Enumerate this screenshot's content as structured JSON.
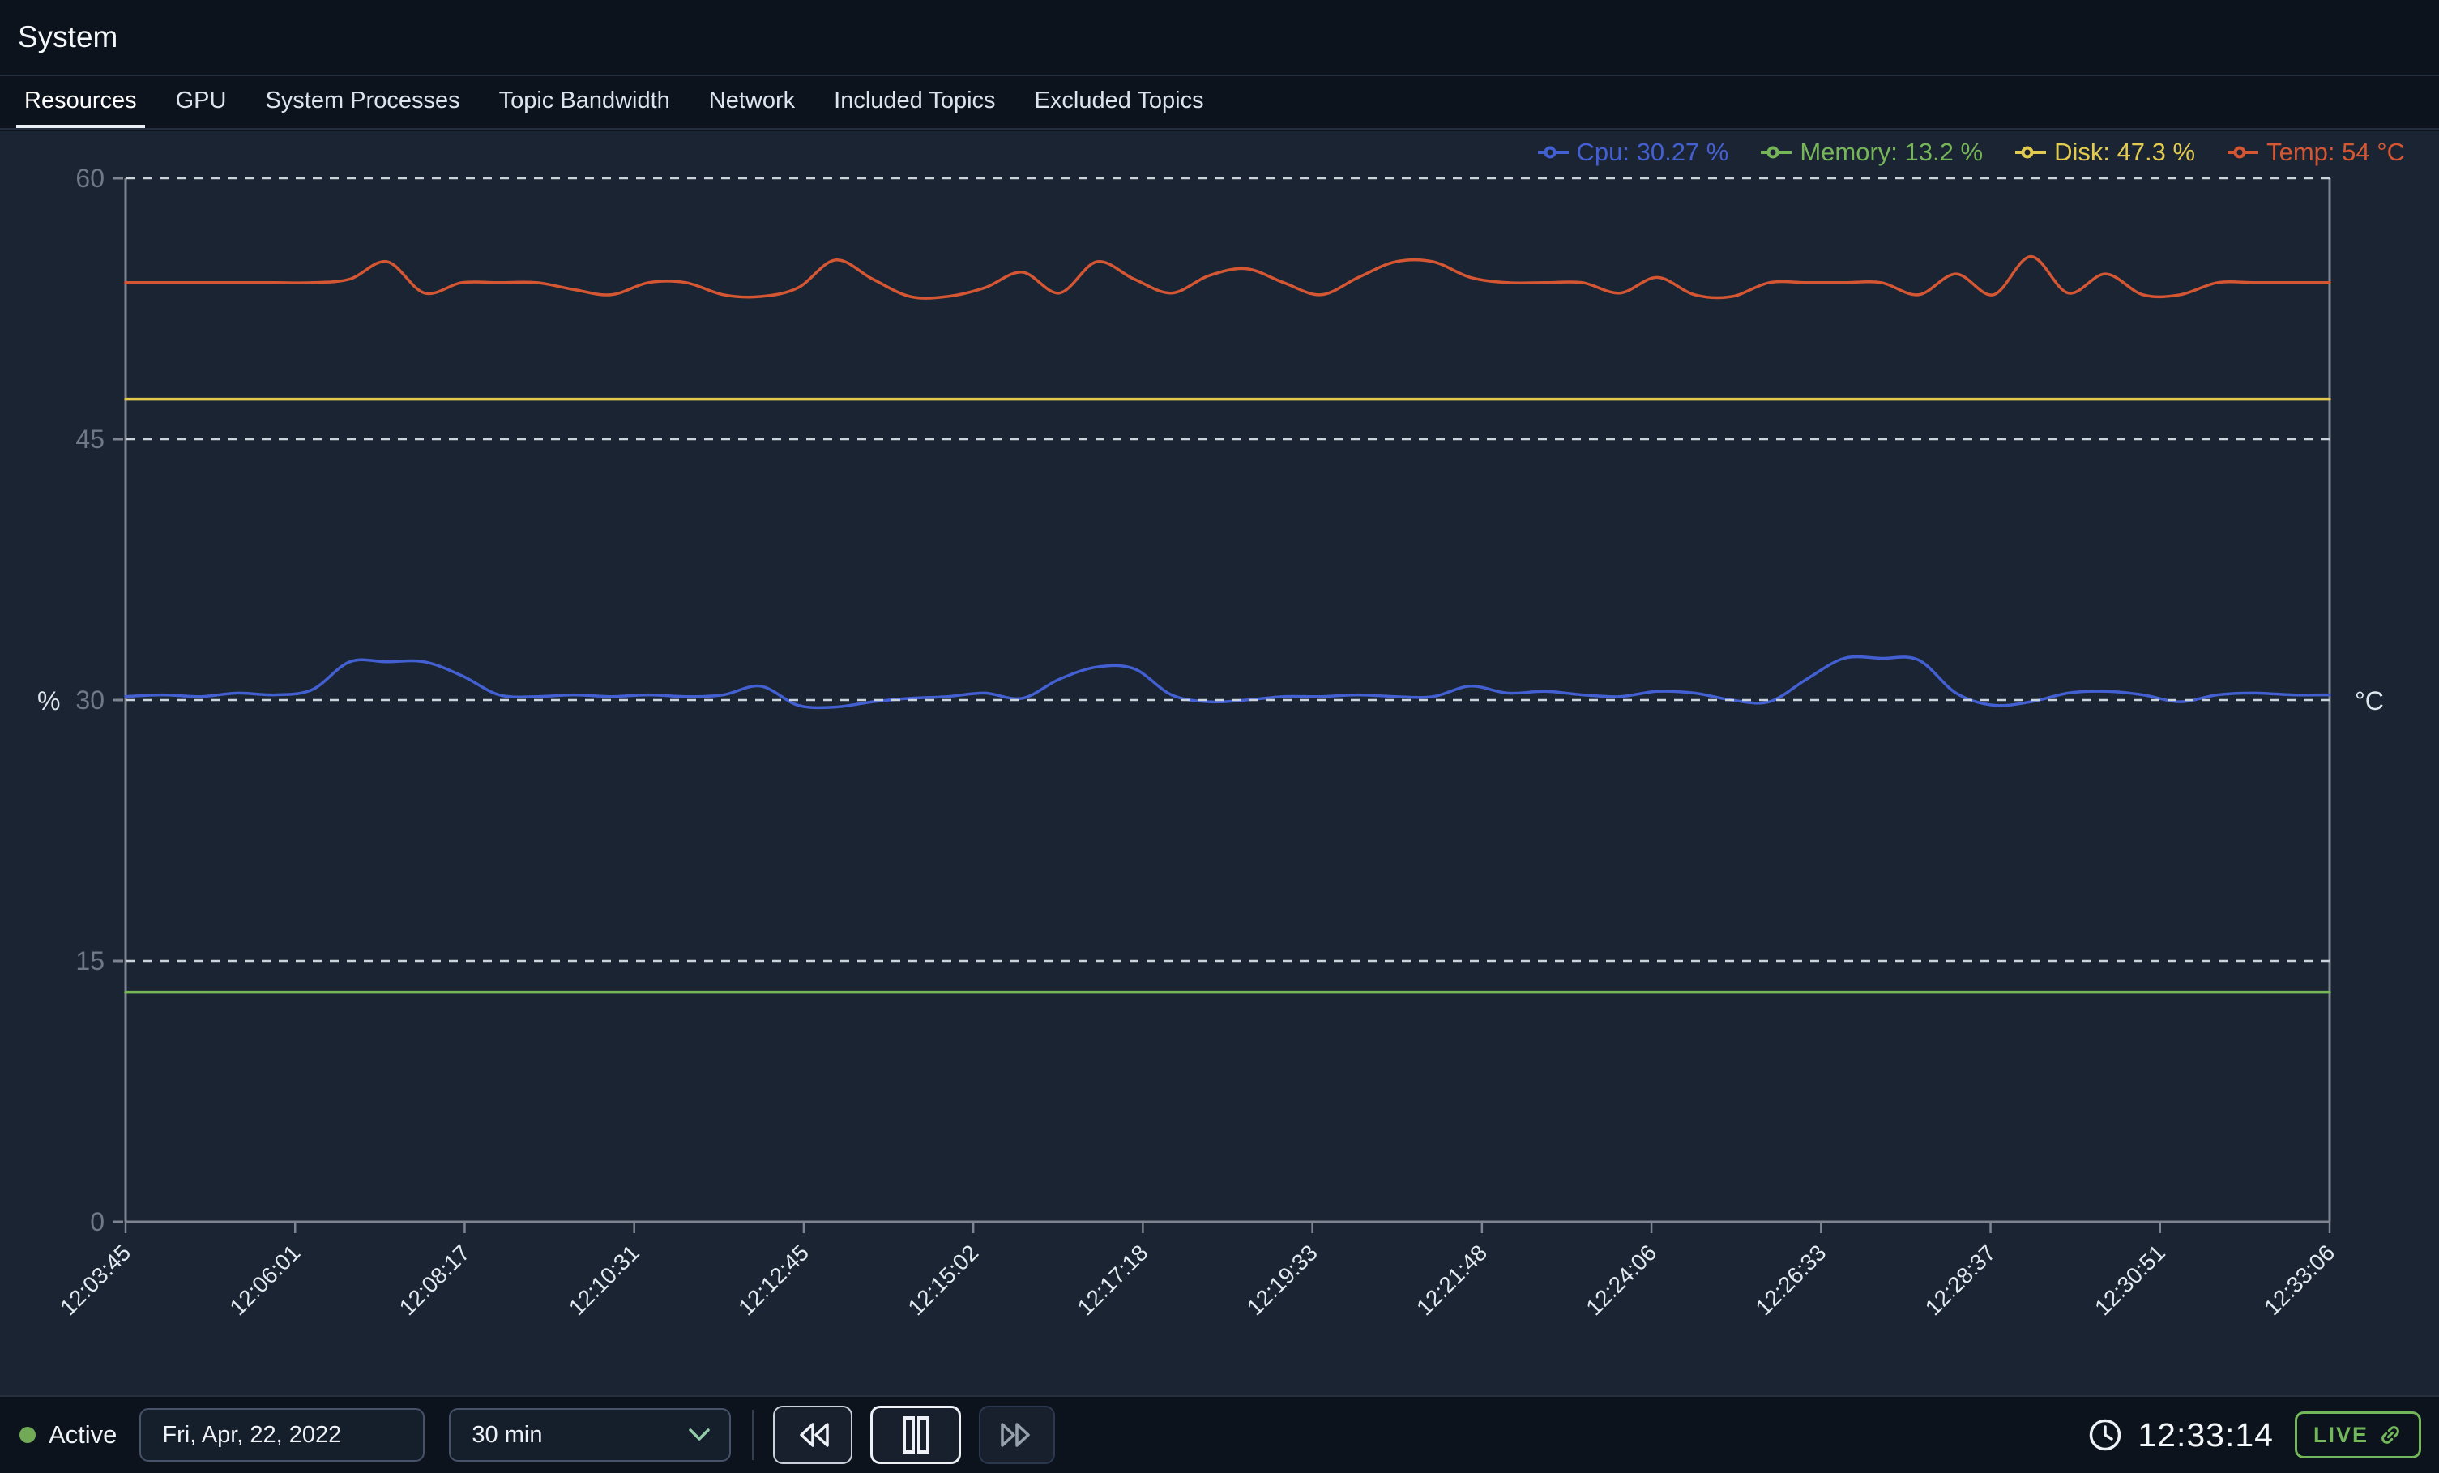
{
  "header": {
    "title": "System"
  },
  "tabs": {
    "items": [
      {
        "label": "Resources",
        "active": true
      },
      {
        "label": "GPU",
        "active": false
      },
      {
        "label": "System Processes",
        "active": false
      },
      {
        "label": "Topic Bandwidth",
        "active": false
      },
      {
        "label": "Network",
        "active": false
      },
      {
        "label": "Included Topics",
        "active": false
      },
      {
        "label": "Excluded Topics",
        "active": false
      }
    ]
  },
  "chart_data": {
    "type": "line",
    "title": "",
    "y_left_label": "%",
    "y_right_label": "°C",
    "ylim": [
      0,
      60
    ],
    "y_ticks": [
      0,
      15,
      30,
      45,
      60
    ],
    "grid": "horizontal-dashed",
    "legend_position": "top-right",
    "x_tick_labels": [
      "12:03:45",
      "12:06:01",
      "12:08:17",
      "12:10:31",
      "12:12:45",
      "12:15:02",
      "12:17:18",
      "12:19:33",
      "12:21:48",
      "12:24:06",
      "12:26:33",
      "12:28:37",
      "12:30:51",
      "12:33:06"
    ],
    "series": [
      {
        "name": "Memory",
        "legend_label": "Memory: 13.2 %",
        "unit": "%",
        "current": 13.2,
        "color": "#77b658",
        "values": [
          13.2,
          13.2
        ]
      },
      {
        "name": "Disk",
        "legend_label": "Disk: 47.3 %",
        "unit": "%",
        "current": 47.3,
        "color": "#e2cb4e",
        "values": [
          47.3,
          47.3
        ]
      },
      {
        "name": "Temp",
        "legend_label": "Temp: 54 °C",
        "unit": "°C",
        "current": 54,
        "color": "#d55633",
        "values": [
          54,
          54,
          54,
          54,
          54,
          54,
          54.2,
          55.2,
          53.4,
          54,
          54,
          54,
          53.6,
          53.3,
          54,
          54,
          53.3,
          53.2,
          53.7,
          55.3,
          54.2,
          53.2,
          53.2,
          53.7,
          54.6,
          53.4,
          55.2,
          54.2,
          53.4,
          54.4,
          54.8,
          54,
          53.3,
          54.3,
          55.2,
          55.2,
          54.3,
          54,
          54,
          54,
          53.4,
          54.3,
          53.3,
          53.2,
          54,
          54,
          54,
          54,
          53.3,
          54.5,
          53.3,
          55.5,
          53.4,
          54.5,
          53.3,
          53.3,
          54,
          54,
          54,
          54
        ]
      },
      {
        "name": "Cpu",
        "legend_label": "Cpu: 30.27 %",
        "unit": "%",
        "current": 30.27,
        "color": "#4360d2",
        "values": [
          30.2,
          30.3,
          30.2,
          30.4,
          30.3,
          30.6,
          32.2,
          32.2,
          32.2,
          31.4,
          30.3,
          30.2,
          30.3,
          30.2,
          30.3,
          30.2,
          30.3,
          30.8,
          29.7,
          29.6,
          29.9,
          30.1,
          30.2,
          30.4,
          30.1,
          31.2,
          31.9,
          31.8,
          30.3,
          29.9,
          30.0,
          30.2,
          30.2,
          30.3,
          30.2,
          30.2,
          30.8,
          30.4,
          30.5,
          30.3,
          30.2,
          30.5,
          30.4,
          30.0,
          29.9,
          31.2,
          32.4,
          32.4,
          32.3,
          30.4,
          29.7,
          29.9,
          30.4,
          30.5,
          30.3,
          29.9,
          30.3,
          30.4,
          30.3,
          30.3
        ]
      }
    ],
    "legend_order": [
      "Cpu",
      "Memory",
      "Disk",
      "Temp"
    ]
  },
  "chart_style": {
    "axis_color": "#7e8491",
    "grid_color": "#ccd3db",
    "y_tick_text_color": "#6f7888",
    "x_tick_text_color": "#e3e9f0",
    "unit_text_color": "#dfe6ee"
  },
  "bottom_bar": {
    "status_label": "Active",
    "status_color": "#71a956",
    "date_value": "Fri, Apr, 22, 2022",
    "range_value": "30 min",
    "time_value": "12:33:14",
    "live_label": "LIVE",
    "live_color": "#72b75a"
  }
}
